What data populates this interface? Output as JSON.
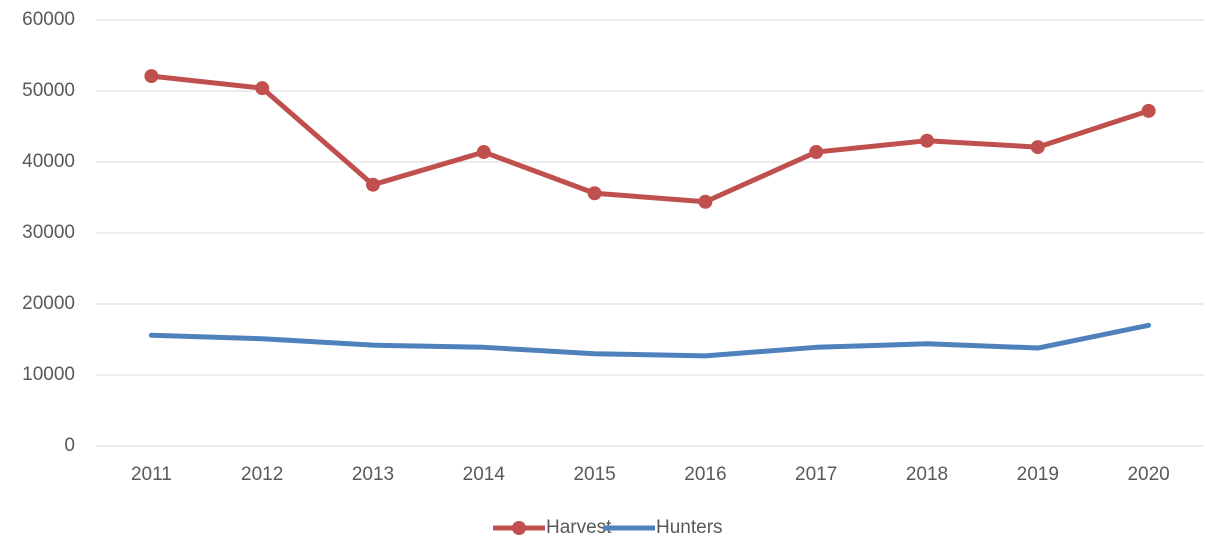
{
  "chart_data": {
    "type": "line",
    "categories": [
      "2011",
      "2012",
      "2013",
      "2014",
      "2015",
      "2016",
      "2017",
      "2018",
      "2019",
      "2020"
    ],
    "series": [
      {
        "name": "Harvest",
        "color": "#c0504d",
        "markers": true,
        "values": [
          52100,
          50400,
          36800,
          41400,
          35600,
          34400,
          41400,
          43000,
          42100,
          47200
        ]
      },
      {
        "name": "Hunters",
        "color": "#4f81bd",
        "markers": false,
        "values": [
          15600,
          15100,
          14200,
          13900,
          13000,
          12700,
          13900,
          14400,
          13800,
          17000
        ]
      }
    ],
    "ylim": [
      0,
      60000
    ],
    "yticks": [
      0,
      10000,
      20000,
      30000,
      40000,
      50000,
      60000
    ],
    "grid": true,
    "legend": "bottom"
  }
}
